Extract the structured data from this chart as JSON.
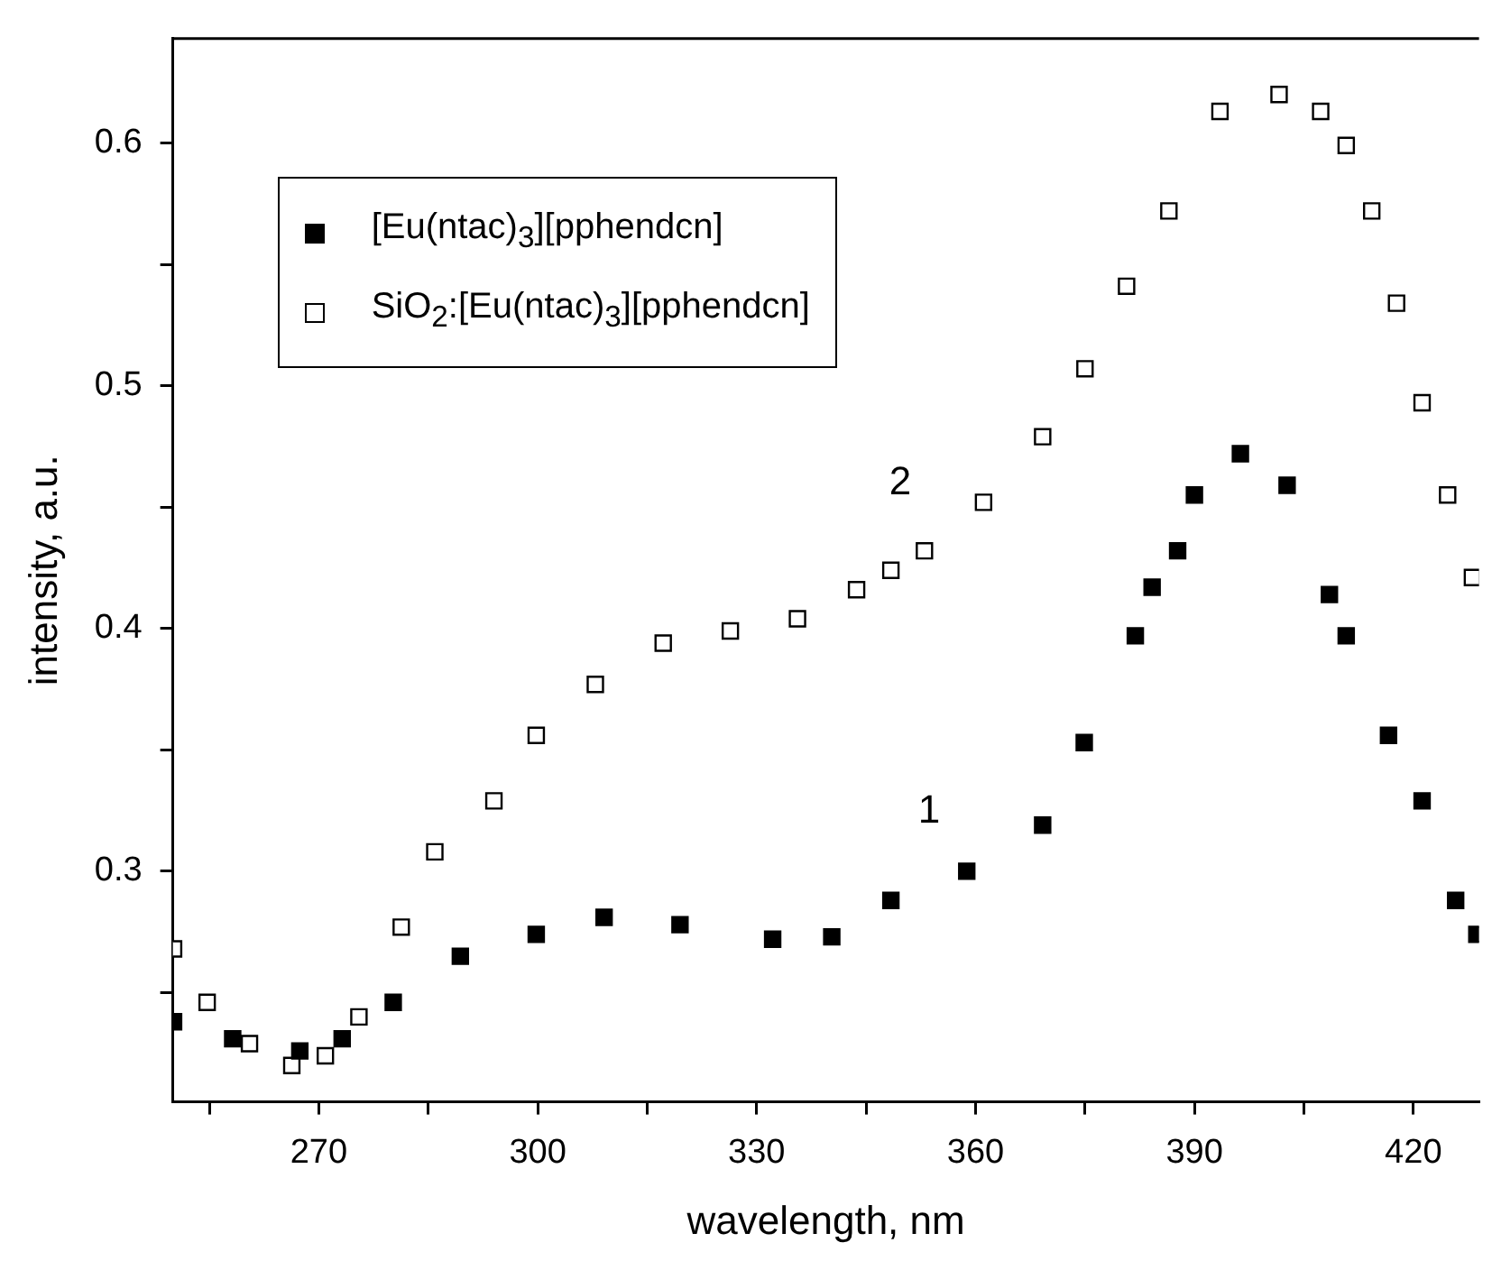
{
  "chart_data": {
    "type": "scatter",
    "xlabel": "wavelength, nm",
    "ylabel": "intensity, a.u.",
    "xlim": [
      250,
      429
    ],
    "ylim": [
      0.205,
      0.643
    ],
    "xticks": [
      {
        "value": 255,
        "label": null
      },
      270,
      {
        "value": 285,
        "label": null
      },
      300,
      {
        "value": 315,
        "label": null
      },
      330,
      {
        "value": 345,
        "label": null
      },
      360,
      {
        "value": 375,
        "label": null
      },
      390,
      {
        "value": 405,
        "label": null
      },
      420
    ],
    "yticks": [
      {
        "value": 0.25,
        "label": null
      },
      0.3,
      {
        "value": 0.35,
        "label": null
      },
      0.4,
      {
        "value": 0.45,
        "label": null
      },
      0.5,
      {
        "value": 0.55,
        "label": null
      },
      0.6
    ],
    "marker": "square",
    "grid": false,
    "legend": "top left",
    "series": [
      {
        "name": "[Eu(ntac)$_{3}$][pphendcn]",
        "color": "#000000",
        "x": [
          250.1,
          258.2,
          267.4,
          273.2,
          280.2,
          289.4,
          299.8,
          309.1,
          319.5,
          332.2,
          340.3,
          348.4,
          358.8,
          369.2,
          374.9,
          381.9,
          384.2,
          387.7,
          390,
          396.3,
          402.7,
          408.5,
          410.8,
          416.6,
          421.2,
          425.8,
          428.7
        ],
        "values": [
          0.238,
          0.231,
          0.226,
          0.231,
          0.246,
          0.265,
          0.274,
          0.281,
          0.278,
          0.272,
          0.273,
          0.288,
          0.3,
          0.319,
          0.353,
          0.397,
          0.417,
          0.432,
          0.455,
          0.472,
          0.459,
          0.414,
          0.397,
          0.356,
          0.329,
          0.288,
          0.274
        ]
      },
      {
        "name": "SiO$_{2}$:[Eu(ntac)$_{3}$][pphendcn]",
        "color": "#000000",
        "x": [
          250.1,
          254.7,
          260.5,
          266.3,
          270.9,
          275.5,
          281.3,
          285.9,
          294,
          299.8,
          307.9,
          317.2,
          326.4,
          335.6,
          343.7,
          348.4,
          353,
          361.1,
          369.2,
          375,
          380.7,
          386.5,
          393.5,
          401.6,
          407.3,
          410.8,
          414.3,
          417.7,
          421.2,
          424.7,
          428.1
        ],
        "values": [
          0.268,
          0.246,
          0.229,
          0.22,
          0.224,
          0.24,
          0.277,
          0.308,
          0.329,
          0.356,
          0.377,
          0.394,
          0.399,
          0.404,
          0.416,
          0.424,
          0.432,
          0.452,
          0.479,
          0.507,
          0.541,
          0.572,
          0.613,
          0.62,
          0.613,
          0.599,
          0.572,
          0.534,
          0.493,
          0.455,
          0.421
        ]
      }
    ],
    "annotations": [
      "2",
      "1"
    ]
  }
}
